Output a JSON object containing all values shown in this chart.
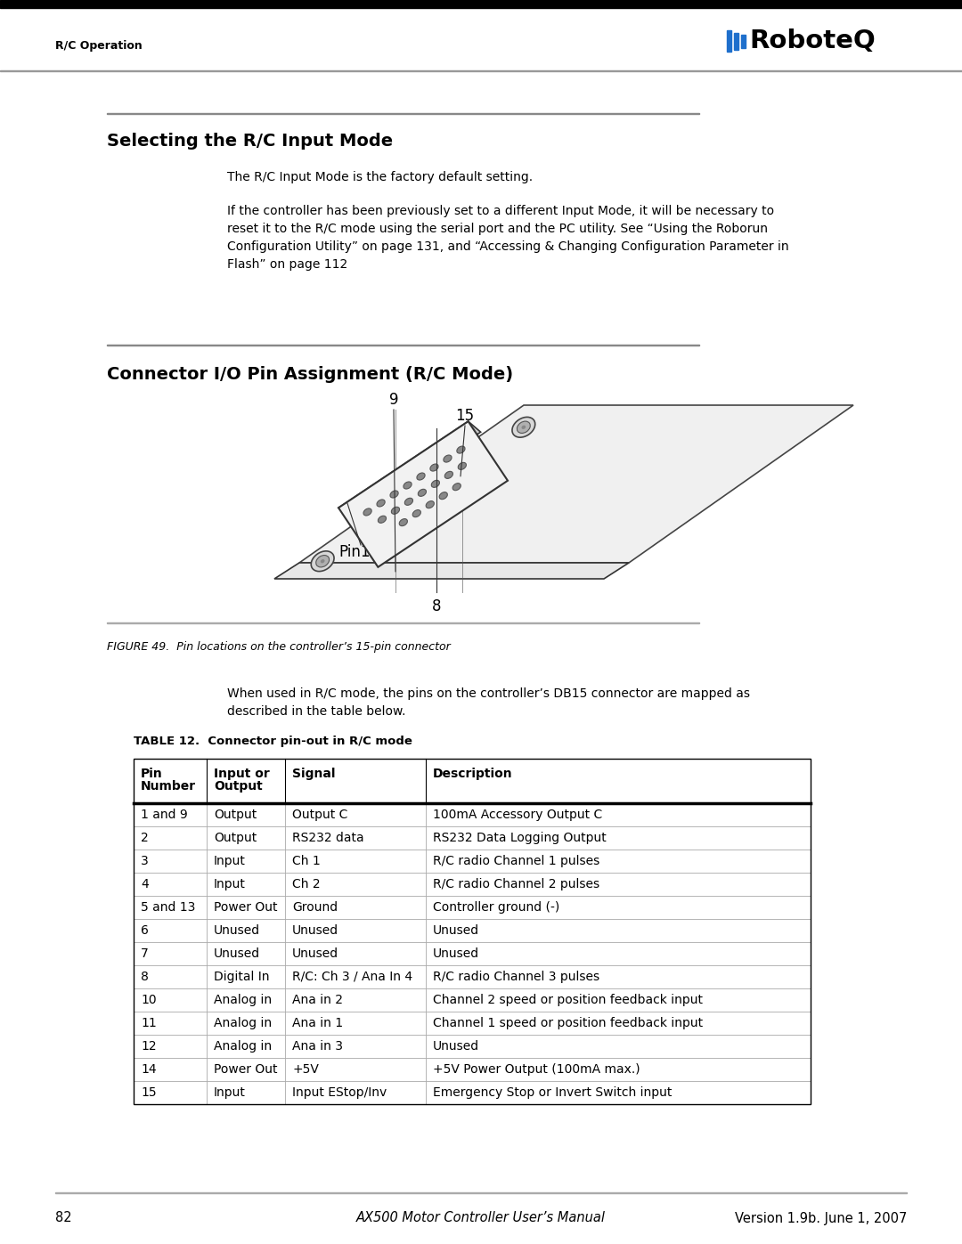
{
  "header_left": "R/C Operation",
  "section1_title": "Selecting the R/C Input Mode",
  "section1_para1": "The R/C Input Mode is the factory default setting.",
  "section1_para2": "If the controller has been previously set to a different Input Mode, it will be necessary to\nreset it to the R/C mode using the serial port and the PC utility. See “Using the Roborun\nConfiguration Utility” on page 131, and “Accessing & Changing Configuration Parameter in\nFlash” on page 112",
  "section2_title": "Connector I/O Pin Assignment (R/C Mode)",
  "figure_caption": "FIGURE 49.  Pin locations on the controller’s 15-pin connector",
  "connector_text": "When used in R/C mode, the pins on the controller’s DB15 connector are mapped as\ndescribed in the table below.",
  "table_title": "TABLE 12.  Connector pin-out in R/C mode",
  "table_headers": [
    "Pin\nNumber",
    "Input or\nOutput",
    "Signal",
    "Description"
  ],
  "table_data": [
    [
      "1 and 9",
      "Output",
      "Output C",
      "100mA Accessory Output C"
    ],
    [
      "2",
      "Output",
      "RS232 data",
      "RS232 Data Logging Output"
    ],
    [
      "3",
      "Input",
      "Ch 1",
      "R/C radio Channel 1 pulses"
    ],
    [
      "4",
      "Input",
      "Ch 2",
      "R/C radio Channel 2 pulses"
    ],
    [
      "5 and 13",
      "Power Out",
      "Ground",
      "Controller ground (-)"
    ],
    [
      "6",
      "Unused",
      "Unused",
      "Unused"
    ],
    [
      "7",
      "Unused",
      "Unused",
      "Unused"
    ],
    [
      "8",
      "Digital In",
      "R/C: Ch 3 / Ana In 4",
      "R/C radio Channel 3 pulses"
    ],
    [
      "10",
      "Analog in",
      "Ana in 2",
      "Channel 2 speed or position feedback input"
    ],
    [
      "11",
      "Analog in",
      "Ana in 1",
      "Channel 1 speed or position feedback input"
    ],
    [
      "12",
      "Analog in",
      "Ana in 3",
      "Unused"
    ],
    [
      "14",
      "Power Out",
      "+5V",
      "+5V Power Output (100mA max.)"
    ],
    [
      "15",
      "Input",
      "Input EStop/Inv",
      "Emergency Stop or Invert Switch input"
    ]
  ],
  "footer_page": "82",
  "footer_center": "AX500 Motor Controller User’s Manual",
  "footer_right": "Version 1.9b. June 1, 2007"
}
